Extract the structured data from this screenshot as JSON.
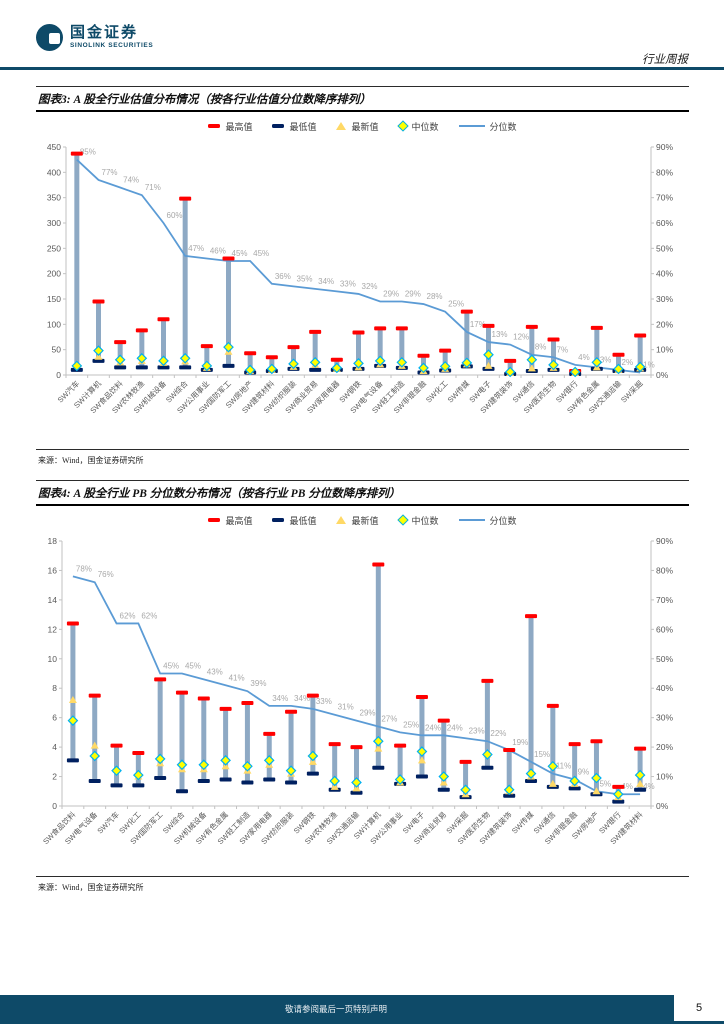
{
  "header": {
    "brand_cn": "国金证券",
    "brand_en": "SINOLINK SECURITIES",
    "doc_type": "行业周报"
  },
  "legend": {
    "max": "最高值",
    "min": "最低值",
    "latest": "最新值",
    "median": "中位数",
    "percentile": "分位数"
  },
  "figures": {
    "fig3": {
      "title": "图表3: A 股全行业估值分布情况（按各行业估值分位数降序排列）",
      "source": "来源：Wind，国金证券研究所"
    },
    "fig4": {
      "title": "图表4: A 股全行业 PB 分位数分布情况（按各行业 PB 分位数降序排列）",
      "source": "来源：Wind，国金证券研究所"
    }
  },
  "footer": {
    "disclaimer": "敬请参阅最后一页特别声明",
    "page": "5"
  },
  "colors": {
    "navy": "#0E4A68",
    "max": "#FF0000",
    "min": "#002060",
    "latest": "#FFD966",
    "median_fill": "#FFFF00",
    "median_stroke": "#00B0F0",
    "line": "#5B9BD5",
    "stem": "#8EA9C4",
    "pct_label": "#A8A8A8",
    "axis": "#C2C2C2",
    "tick_text": "#595959"
  },
  "chart_data": [
    {
      "type": "bar",
      "overlay": "line",
      "title": "A股全行业估值分布情况（按各行业估值分位数降序排列）",
      "xlabel": "",
      "ylabel": "",
      "grid": false,
      "legend_position": "top",
      "ylim_left": [
        0,
        450
      ],
      "ytick_step_left": 50,
      "ylim_right": [
        0,
        90
      ],
      "ytick_step_right": 10,
      "unit_right": "%",
      "categories": [
        "SW汽车",
        "SW计算机",
        "SW食品饮料",
        "SW农林牧渔",
        "SW机械设备",
        "SW综合",
        "SW公用事业",
        "SW国防军工",
        "SW房地产",
        "SW建筑材料",
        "SW纺织服装",
        "SW商业贸易",
        "SW家用电器",
        "SW钢铁",
        "SW电气设备",
        "SW轻工制造",
        "SW非银金融",
        "SW化工",
        "SW传媒",
        "SW电子",
        "SW建筑装饰",
        "SW通信",
        "SW医药生物",
        "SW银行",
        "SW有色金属",
        "SW交通运输",
        "SW采掘"
      ],
      "series": [
        {
          "name": "最高值",
          "values": [
            437,
            145,
            65,
            88,
            110,
            348,
            57,
            230,
            43,
            35,
            55,
            85,
            30,
            84,
            92,
            92,
            38,
            48,
            125,
            97,
            28,
            95,
            70,
            8,
            93,
            40,
            78
          ]
        },
        {
          "name": "最低值",
          "values": [
            10,
            28,
            15,
            15,
            15,
            15,
            10,
            18,
            5,
            8,
            12,
            10,
            10,
            12,
            18,
            14,
            5,
            9,
            17,
            12,
            2,
            8,
            10,
            2,
            12,
            8,
            10
          ]
        },
        {
          "name": "最新值",
          "values": [
            20,
            36,
            25,
            28,
            24,
            27,
            14,
            46,
            8,
            10,
            16,
            20,
            12,
            15,
            21,
            18,
            8,
            12,
            21,
            18,
            4,
            13,
            14,
            4,
            15,
            10,
            13
          ]
        },
        {
          "name": "中位数",
          "values": [
            18,
            48,
            30,
            33,
            28,
            33,
            18,
            55,
            10,
            12,
            22,
            25,
            14,
            23,
            28,
            25,
            14,
            17,
            24,
            40,
            6,
            30,
            20,
            6,
            25,
            12,
            16
          ]
        },
        {
          "name": "分位数",
          "axis": "right",
          "unit": "%",
          "values": [
            85,
            77,
            74,
            71,
            60,
            47,
            46,
            45,
            45,
            36,
            35,
            34,
            33,
            32,
            29,
            29,
            28,
            25,
            17,
            13,
            12,
            8,
            7,
            4,
            3,
            2,
            1
          ]
        }
      ]
    },
    {
      "type": "bar",
      "overlay": "line",
      "title": "A股全行业PB分位数分布情况（按各行业PB分位数降序排列）",
      "xlabel": "",
      "ylabel": "",
      "grid": false,
      "legend_position": "top",
      "ylim_left": [
        0,
        18
      ],
      "ytick_step_left": 2,
      "ylim_right": [
        0,
        90
      ],
      "ytick_step_right": 10,
      "unit_right": "%",
      "categories": [
        "SW食品饮料",
        "SW电气设备",
        "SW汽车",
        "SW化工",
        "SW国防军工",
        "SW综合",
        "SW机械设备",
        "SW有色金属",
        "SW轻工制造",
        "SW家用电器",
        "SW纺织服装",
        "SW钢铁",
        "SW农林牧渔",
        "SW交通运输",
        "SW计算机",
        "SW公用事业",
        "SW电子",
        "SW商业贸易",
        "SW采掘",
        "SW医药生物",
        "SW建筑装饰",
        "SW传媒",
        "SW通信",
        "SW非银金融",
        "SW房地产",
        "SW银行",
        "SW建筑材料"
      ],
      "series": [
        {
          "name": "最高值",
          "values": [
            12.4,
            7.5,
            4.1,
            3.6,
            8.6,
            7.7,
            7.3,
            6.6,
            7.0,
            4.9,
            6.4,
            7.5,
            4.2,
            4.0,
            16.4,
            4.1,
            7.4,
            5.8,
            3.0,
            8.5,
            3.8,
            12.9,
            6.8,
            4.2,
            4.4,
            1.3,
            3.9
          ]
        },
        {
          "name": "最低值",
          "values": [
            3.1,
            1.7,
            1.4,
            1.4,
            1.9,
            1.0,
            1.7,
            1.8,
            1.6,
            1.8,
            1.6,
            2.2,
            1.1,
            0.9,
            2.6,
            1.5,
            2.0,
            1.1,
            0.6,
            2.6,
            0.7,
            1.7,
            1.3,
            1.2,
            0.8,
            0.3,
            1.1
          ]
        },
        {
          "name": "最新值",
          "values": [
            7.2,
            4.1,
            2.5,
            2.0,
            2.9,
            2.5,
            2.5,
            2.7,
            2.4,
            2.8,
            2.2,
            3.0,
            1.3,
            1.2,
            3.9,
            1.6,
            3.1,
            1.6,
            0.8,
            3.5,
            1.0,
            2.0,
            1.5,
            1.5,
            1.0,
            0.6,
            1.5
          ]
        },
        {
          "name": "中位数",
          "values": [
            5.8,
            3.4,
            2.4,
            2.1,
            3.2,
            2.8,
            2.8,
            3.1,
            2.7,
            3.1,
            2.4,
            3.4,
            1.7,
            1.6,
            4.4,
            1.8,
            3.7,
            2.0,
            1.1,
            3.5,
            1.1,
            2.2,
            2.7,
            1.7,
            1.9,
            0.8,
            2.1
          ]
        },
        {
          "name": "分位数",
          "axis": "right",
          "unit": "%",
          "values": [
            78,
            76,
            62,
            62,
            45,
            45,
            43,
            41,
            39,
            34,
            34,
            33,
            31,
            29,
            27,
            25,
            24,
            24,
            23,
            22,
            19,
            15,
            11,
            9,
            5,
            4,
            4
          ]
        }
      ]
    }
  ]
}
